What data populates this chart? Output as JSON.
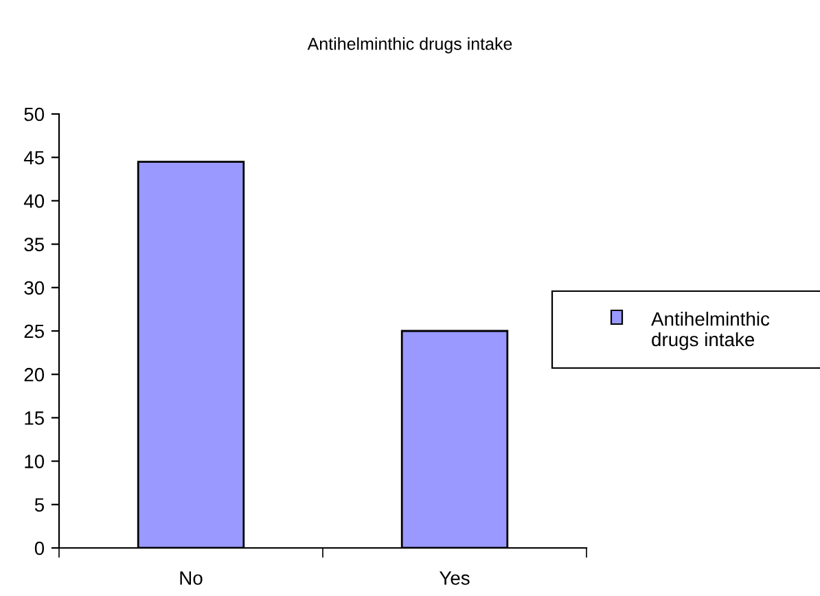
{
  "chart_data": {
    "type": "bar",
    "title": "Antihelminthic drugs intake",
    "categories": [
      "No",
      "Yes"
    ],
    "series": [
      {
        "name": "Antihelminthic drugs intake",
        "color": "#9999ff",
        "values": [
          44.5,
          25
        ]
      }
    ],
    "ylim": [
      0,
      50
    ],
    "yticks": [
      0,
      5,
      10,
      15,
      20,
      25,
      30,
      35,
      40,
      45,
      50
    ],
    "grid": false,
    "legend": "right"
  }
}
